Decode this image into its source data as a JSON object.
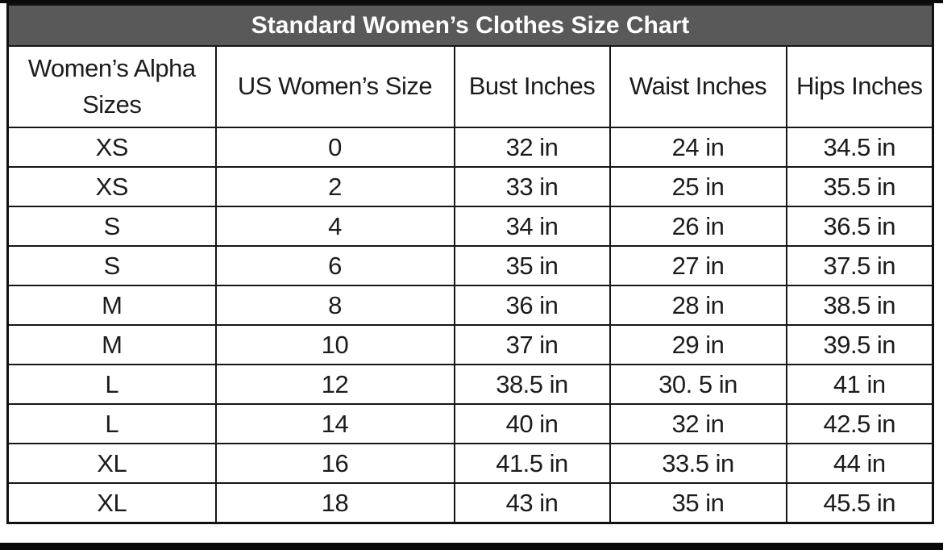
{
  "title": "Standard Women’s Clothes Size Chart",
  "chart_data": {
    "type": "table",
    "title": "Standard Women’s Clothes Size Chart",
    "columns": [
      "Women’s Alpha Sizes",
      "US Women’s Size",
      "Bust Inches",
      "Waist Inches",
      "Hips Inches"
    ],
    "rows": [
      [
        "XS",
        "0",
        "32 in",
        "24 in",
        "34.5 in"
      ],
      [
        "XS",
        "2",
        "33 in",
        "25 in",
        "35.5 in"
      ],
      [
        "S",
        "4",
        "34 in",
        "26 in",
        "36.5 in"
      ],
      [
        "S",
        "6",
        "35 in",
        "27 in",
        "37.5 in"
      ],
      [
        "M",
        "8",
        "36 in",
        "28 in",
        "38.5 in"
      ],
      [
        "M",
        "10",
        "37 in",
        "29 in",
        "39.5 in"
      ],
      [
        "L",
        "12",
        "38.5 in",
        "30. 5 in",
        "41 in"
      ],
      [
        "L",
        "14",
        "40 in",
        "32 in",
        "42.5 in"
      ],
      [
        "XL",
        "16",
        "41.5 in",
        "33.5 in",
        "44 in"
      ],
      [
        "XL",
        "18",
        "43 in",
        "35 in",
        "45.5 in"
      ]
    ]
  },
  "colors": {
    "title_bg": "#595959",
    "title_text": "#ffffff",
    "border": "#161616",
    "cell_text": "#1c1c1c",
    "cell_bg": "#ffffff",
    "frame_bar": "#0a0a0a"
  }
}
